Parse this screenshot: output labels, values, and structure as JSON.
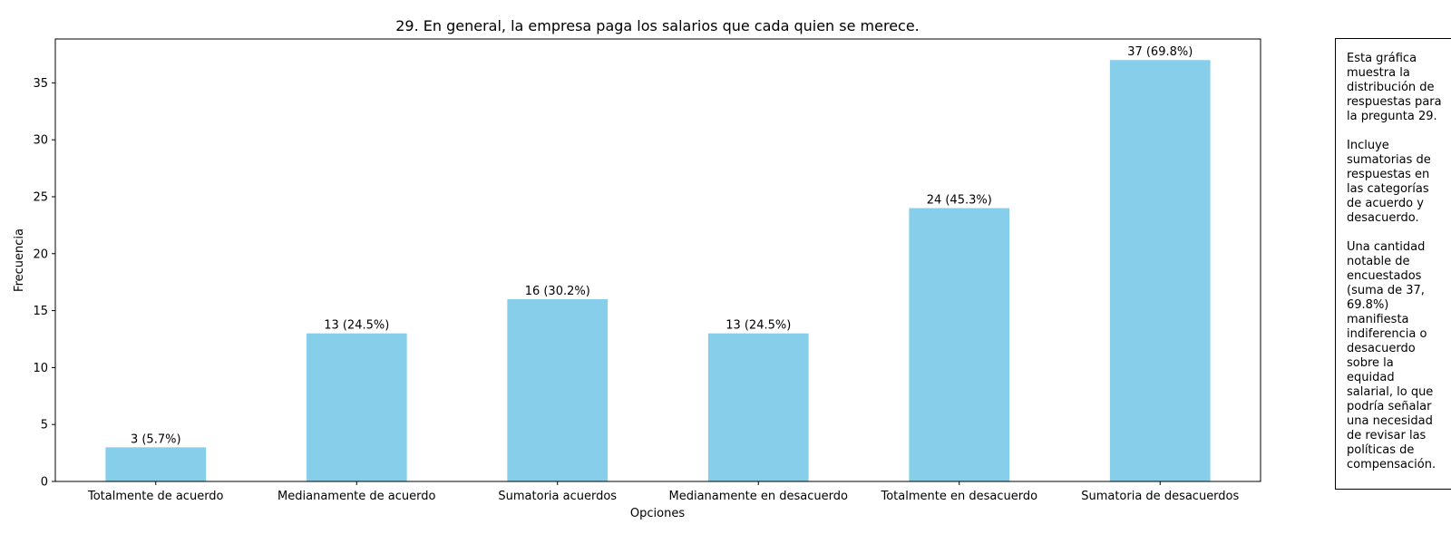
{
  "chart_data": {
    "type": "bar",
    "title": "29. En general, la empresa paga los salarios que cada quien se merece.",
    "xlabel": "Opciones",
    "ylabel": "Frecuencia",
    "ylim": [
      0,
      38.85
    ],
    "yticks": [
      0,
      5,
      10,
      15,
      20,
      25,
      30,
      35
    ],
    "grid": false,
    "bar_color": "#87CEEB",
    "categories": [
      "Totalmente de acuerdo",
      "Medianamente de acuerdo",
      "Sumatoria acuerdos",
      "Medianamente en desacuerdo",
      "Totalmente en desacuerdo",
      "Sumatoria de desacuerdos"
    ],
    "values": [
      3,
      13,
      16,
      13,
      24,
      37
    ],
    "data_labels": [
      "3 (5.7%)",
      "13 (24.5%)",
      "16 (30.2%)",
      "13 (24.5%)",
      "24 (45.3%)",
      "37 (69.8%)"
    ]
  },
  "note": {
    "text": "Esta gráfica\nmuestra la\ndistribución de\nrespuestas para\nla pregunta 29.\n\nIncluye\nsumatorias de\nrespuestas en\nlas categorías\nde acuerdo y\ndesacuerdo.\n\nUna cantidad\nnotable de\nencuestados\n(suma de 37,\n69.8%)\nmanifiesta\nindiferencia o\ndesacuerdo\nsobre la\nequidad\nsalarial, lo que\npodría señalar\nuna necesidad\nde revisar las\npolíticas de\ncompensación."
  }
}
